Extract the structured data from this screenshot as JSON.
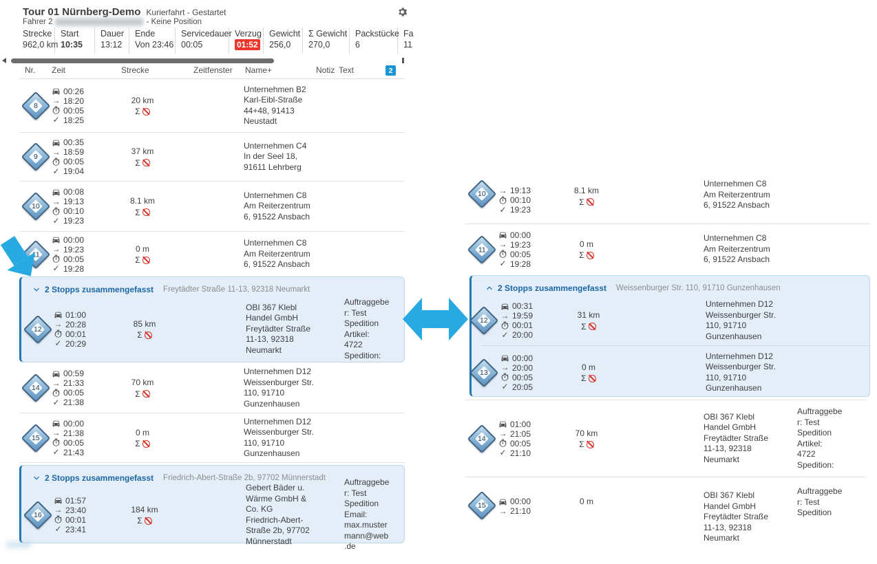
{
  "header": {
    "title": "Tour 01 Nürnberg-Demo",
    "subtitle": "Kurierfahrt - Gestartet",
    "driver": "Fahrer 2",
    "driver_status": "- Keine Position",
    "stats": [
      {
        "label": "Strecke",
        "value": "962,0 km"
      },
      {
        "label": "Start",
        "value": "10:35"
      },
      {
        "label": "Dauer",
        "value": "13:12"
      },
      {
        "label": "Ende",
        "value": "Von 23:46"
      },
      {
        "label": "Servicedauer",
        "value": "00:05"
      },
      {
        "label": "Verzug",
        "value": "01:52"
      },
      {
        "label": "Gewicht",
        "value": "256,0"
      },
      {
        "label": "Σ Gewicht",
        "value": "270,0"
      },
      {
        "label": "Packstücke",
        "value": "6"
      },
      {
        "label": "Fa",
        "value": "11"
      }
    ]
  },
  "columns": {
    "nr": "Nr.",
    "zeit": "Zeit",
    "strecke": "Strecke",
    "zeitfenster": "Zeitfenster",
    "name": "Name+",
    "notiz": "Notiz",
    "text": "Text",
    "badge": "2"
  },
  "left": {
    "rows": [
      {
        "nr": "8",
        "drive": "00:26",
        "arrive": "18:20",
        "service": "00:05",
        "done": "18:25",
        "dist": "20 km",
        "company": "Unternehmen B2",
        "address": "Karl-Eibl-Straße 44+48, 91413 Neustadt"
      },
      {
        "nr": "9",
        "drive": "00:35",
        "arrive": "18:59",
        "service": "00:05",
        "done": "19:04",
        "dist": "37 km",
        "company": "Unternehmen C4",
        "address": "In der Seel 18, 91611 Lehrberg"
      },
      {
        "nr": "10",
        "drive": "00:08",
        "arrive": "19:13",
        "service": "00:10",
        "done": "19:23",
        "dist": "8.1 km",
        "company": "Unternehmen C8",
        "address": "Am Reiterzentrum 6, 91522 Ansbach"
      },
      {
        "nr": "11",
        "drive": "00:00",
        "arrive": "19:23",
        "service": "00:05",
        "done": "19:28",
        "dist": "0 m",
        "company": "Unternehmen C8",
        "address": "Am Reiterzentrum 6, 91522 Ansbach"
      },
      {
        "nr": "14",
        "drive": "00:59",
        "arrive": "21:33",
        "service": "00:05",
        "done": "21:38",
        "dist": "70 km",
        "company": "Unternehmen D12",
        "address": "Weissenburger Str. 110, 91710 Gunzenhausen"
      },
      {
        "nr": "15",
        "drive": "00:00",
        "arrive": "21:38",
        "service": "00:05",
        "done": "21:43",
        "dist": "0 m",
        "company": "Unternehmen D12",
        "address": "Weissenburger Str. 110, 91710 Gunzenhausen"
      }
    ],
    "group1": {
      "title": "2 Stopps zusammengefasst",
      "address": "Freytädter Straße 11-13, 92318 Neumarkt",
      "stop": {
        "nr": "12",
        "drive": "01:00",
        "arrive": "20:28",
        "service": "00:01",
        "done": "20:29",
        "dist": "85 km",
        "company": "OBI 367 Klebl Handel GmbH",
        "address": "Freytädter Straße 11-13, 92318 Neumarkt",
        "text": [
          "Auftraggeber: Test Spedition",
          "Artikel: 4722",
          "Spedition:"
        ]
      }
    },
    "group2": {
      "title": "2 Stopps zusammengefasst",
      "address": "Friedrich-Abert-Straße 2b, 97702 Münnerstadt",
      "stop": {
        "nr": "16",
        "drive": "01:57",
        "arrive": "23:40",
        "service": "00:01",
        "done": "23:41",
        "dist": "184 km",
        "company": "Gebert Bäder u. Wärme GmbH & Co. KG",
        "address": "Friedrich-Abert-Straße 2b, 97702 Münnerstadt",
        "text": [
          "Auftraggeber: Test Spedition",
          "Email: max.mustermann@web.de"
        ]
      }
    }
  },
  "right": {
    "rows": [
      {
        "nr": "10",
        "arrive": "19:13",
        "service": "00:10",
        "done": "19:23",
        "dist": "8.1 km",
        "company": "Unternehmen C8",
        "address": "Am Reiterzentrum 6, 91522 Ansbach"
      },
      {
        "nr": "11",
        "drive": "00:00",
        "arrive": "19:23",
        "service": "00:05",
        "done": "19:28",
        "dist": "0 m",
        "company": "Unternehmen C8",
        "address": "Am Reiterzentrum 6, 91522 Ansbach"
      },
      {
        "nr": "14",
        "drive": "01:00",
        "arrive": "21:05",
        "service": "00:05",
        "done": "21:10",
        "dist": "70 km",
        "company": "OBI 367 Klebl Handel GmbH",
        "address": "Freytädter Straße 11-13, 92318 Neumarkt",
        "text": [
          "Auftraggeber: Test Spedition",
          "Artikel: 4722",
          "Spedition:"
        ]
      },
      {
        "nr": "15",
        "drive": "00:00",
        "arrive": "21:10",
        "dist": "0 m",
        "company": "OBI 367 Klebl Handel GmbH",
        "address": "Freytädter Straße 11-13, 92318 Neumarkt",
        "text": [
          "Auftraggeber: Test Spedition"
        ]
      }
    ],
    "group": {
      "title": "2 Stopps zusammengefasst",
      "address": "Weissenburger Str. 110, 91710 Gunzenhausen",
      "stops": [
        {
          "nr": "12",
          "drive": "00:31",
          "arrive": "19:59",
          "service": "00:01",
          "done": "20:00",
          "dist": "31 km",
          "company": "Unternehmen D12",
          "address": "Weissenburger Str. 110, 91710 Gunzenhausen"
        },
        {
          "nr": "13",
          "drive": "00:00",
          "arrive": "20:00",
          "service": "00:05",
          "done": "20:05",
          "dist": "0 m",
          "company": "Unternehmen D12",
          "address": "Weissenburger Str. 110, 91710 Gunzenhausen"
        }
      ]
    }
  },
  "colors": {
    "accent_blue": "#2277b6",
    "annotation_cyan": "#27a9e1",
    "alert_red": "#ee372c",
    "group_bg": "#e4eef9",
    "badge_blue": "#1b95d3"
  }
}
